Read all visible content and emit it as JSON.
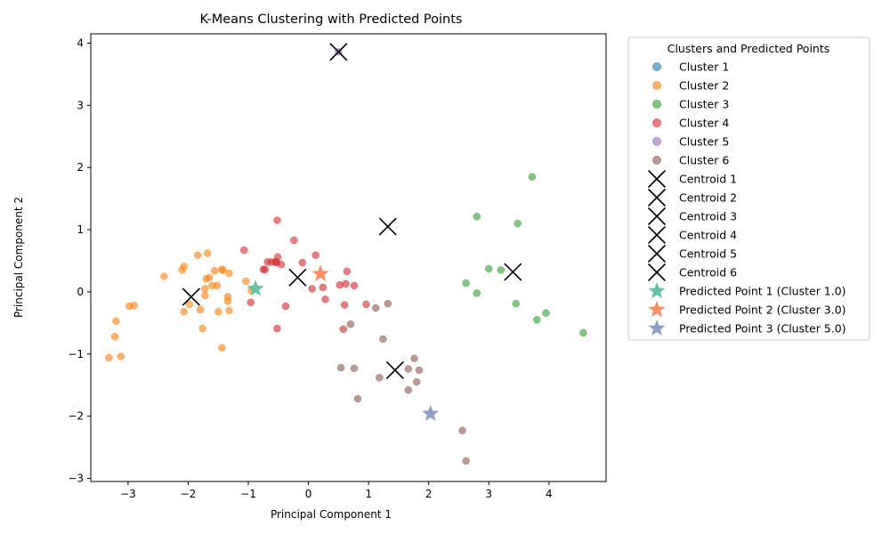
{
  "chart_data": {
    "type": "scatter",
    "title": "K-Means Clustering with Predicted Points",
    "xlabel": "Principal Component 1",
    "ylabel": "Principal Component 2",
    "xlim": [
      -3.62,
      4.95
    ],
    "ylim": [
      -3.05,
      4.15
    ],
    "xticks": [
      -3,
      -2,
      -1,
      0,
      1,
      2,
      3,
      4
    ],
    "yticks": [
      -3,
      -2,
      -1,
      0,
      1,
      2,
      3,
      4
    ],
    "grid": false,
    "legend": {
      "title": "Clusters and Predicted Points",
      "placement": "outside-right"
    },
    "series": [
      {
        "name": "Cluster 1",
        "color": "#1f77b4",
        "points": []
      },
      {
        "name": "Cluster 2",
        "color": "#ff7f0e",
        "points": [
          [
            -3.32,
            -1.06
          ],
          [
            -3.12,
            -1.04
          ],
          [
            -3.22,
            -0.72
          ],
          [
            -3.2,
            -0.47
          ],
          [
            -2.98,
            -0.23
          ],
          [
            -2.9,
            -0.22
          ],
          [
            -2.4,
            0.25
          ],
          [
            -2.1,
            0.35
          ],
          [
            -2.07,
            0.41
          ],
          [
            -2.07,
            -0.32
          ],
          [
            -1.98,
            -0.2
          ],
          [
            -1.84,
            0.59
          ],
          [
            -1.8,
            -0.29
          ],
          [
            -1.76,
            -0.59
          ],
          [
            -1.72,
            -0.06
          ],
          [
            -1.72,
            0.05
          ],
          [
            -1.7,
            0.21
          ],
          [
            -1.68,
            0.62
          ],
          [
            -1.65,
            0.23
          ],
          [
            -1.6,
            0.1
          ],
          [
            -1.56,
            0.34
          ],
          [
            -1.52,
            0.1
          ],
          [
            -1.5,
            -0.32
          ],
          [
            -1.44,
            0.36
          ],
          [
            -1.42,
            0.35
          ],
          [
            -1.44,
            -0.9
          ],
          [
            -1.34,
            -0.08
          ],
          [
            -1.34,
            -0.15
          ],
          [
            -1.32,
            0.3
          ],
          [
            -1.32,
            -0.3
          ],
          [
            -1.04,
            0.17
          ],
          [
            -0.95,
            0.02
          ]
        ]
      },
      {
        "name": "Cluster 3",
        "color": "#2ca02c",
        "points": [
          [
            2.62,
            0.14
          ],
          [
            2.8,
            1.21
          ],
          [
            2.8,
            -0.02
          ],
          [
            3.0,
            0.37
          ],
          [
            3.2,
            0.35
          ],
          [
            3.45,
            -0.19
          ],
          [
            3.48,
            1.1
          ],
          [
            3.72,
            1.85
          ],
          [
            3.8,
            -0.45
          ],
          [
            3.95,
            -0.34
          ],
          [
            4.57,
            -0.66
          ]
        ]
      },
      {
        "name": "Cluster 4",
        "color": "#d62728",
        "points": [
          [
            -1.07,
            0.67
          ],
          [
            -0.96,
            -0.17
          ],
          [
            -0.75,
            0.36
          ],
          [
            -0.72,
            0.36
          ],
          [
            -0.68,
            0.48
          ],
          [
            -0.62,
            0.48
          ],
          [
            -0.55,
            0.48
          ],
          [
            -0.53,
            0.47
          ],
          [
            -0.52,
            1.15
          ],
          [
            -0.51,
            0.56
          ],
          [
            -0.52,
            -0.59
          ],
          [
            -0.45,
            0.44
          ],
          [
            -0.38,
            -0.23
          ],
          [
            -0.24,
            0.83
          ],
          [
            -0.1,
            0.47
          ],
          [
            0.06,
            0.05
          ],
          [
            0.12,
            0.59
          ],
          [
            0.24,
            0.07
          ],
          [
            0.28,
            -0.12
          ],
          [
            0.52,
            0.11
          ],
          [
            0.58,
            -0.6
          ],
          [
            0.6,
            -0.21
          ],
          [
            0.62,
            0.13
          ],
          [
            0.64,
            0.33
          ],
          [
            0.76,
            0.1
          ],
          [
            0.96,
            -0.2
          ]
        ]
      },
      {
        "name": "Cluster 5",
        "color": "#9467bd",
        "points": [
          [
            0.5,
            3.86
          ]
        ]
      },
      {
        "name": "Cluster 6",
        "color": "#8c564b",
        "points": [
          [
            0.54,
            -1.22
          ],
          [
            0.7,
            -0.52
          ],
          [
            0.76,
            -1.23
          ],
          [
            0.82,
            -1.72
          ],
          [
            1.12,
            -0.26
          ],
          [
            1.18,
            -1.38
          ],
          [
            1.24,
            -0.76
          ],
          [
            1.32,
            -0.19
          ],
          [
            1.66,
            -1.24
          ],
          [
            1.66,
            -1.58
          ],
          [
            1.76,
            -1.07
          ],
          [
            1.8,
            -1.45
          ],
          [
            1.84,
            -1.26
          ],
          [
            2.56,
            -2.23
          ],
          [
            2.62,
            -2.72
          ]
        ]
      }
    ],
    "centroids": [
      {
        "name": "Centroid 1",
        "x": -1.95,
        "y": -0.08
      },
      {
        "name": "Centroid 2",
        "x": 0.5,
        "y": 3.86
      },
      {
        "name": "Centroid 3",
        "x": 1.32,
        "y": 1.05
      },
      {
        "name": "Centroid 4",
        "x": -0.18,
        "y": 0.23
      },
      {
        "name": "Centroid 5",
        "x": 3.4,
        "y": 0.32
      },
      {
        "name": "Centroid 6",
        "x": 1.44,
        "y": -1.26
      }
    ],
    "predicted_points": [
      {
        "name": "Predicted Point 1 (Cluster 1.0)",
        "x": -0.88,
        "y": 0.05,
        "color": "#66c2a5"
      },
      {
        "name": "Predicted Point 2 (Cluster 3.0)",
        "x": 0.2,
        "y": 0.29,
        "color": "#fc8d62"
      },
      {
        "name": "Predicted Point 3 (Cluster 5.0)",
        "x": 2.03,
        "y": -1.96,
        "color": "#8da0cb"
      }
    ]
  }
}
